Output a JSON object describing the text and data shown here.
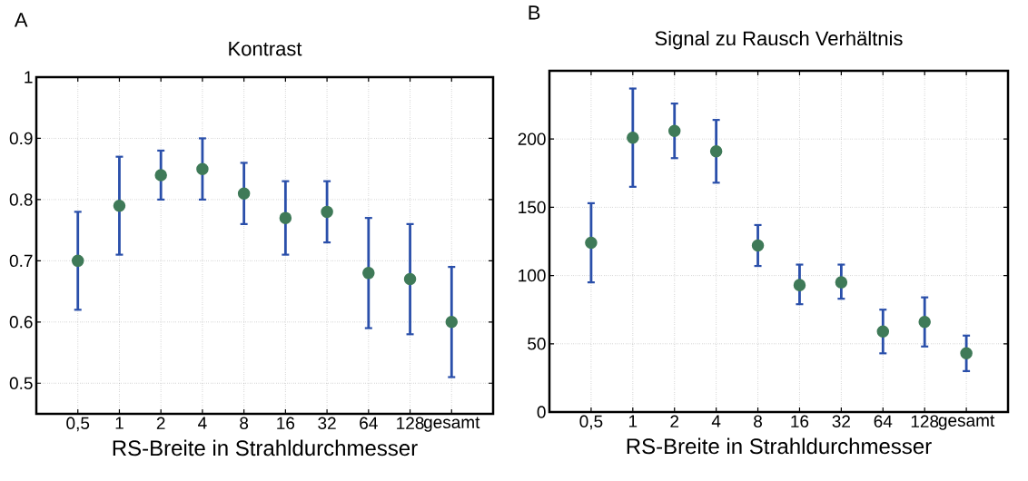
{
  "chart_data": [
    {
      "type": "scatter",
      "title": "Kontrast",
      "xlabel": "RS-Breite in Strahldurchmesser",
      "annotations": [
        "A"
      ],
      "categories": [
        "0,5",
        "1",
        "2",
        "4",
        "8",
        "16",
        "32",
        "64",
        "128",
        "gesamt"
      ],
      "series": [
        {
          "color": "#3f7a58",
          "values": [
            0.7,
            0.79,
            0.84,
            0.85,
            0.81,
            0.77,
            0.78,
            0.68,
            0.67,
            0.6
          ],
          "errors": [
            [
              0.62,
              0.78
            ],
            [
              0.71,
              0.87
            ],
            [
              0.8,
              0.88
            ],
            [
              0.8,
              0.9
            ],
            [
              0.76,
              0.86
            ],
            [
              0.71,
              0.83
            ],
            [
              0.73,
              0.83
            ],
            [
              0.59,
              0.77
            ],
            [
              0.58,
              0.76
            ],
            [
              0.51,
              0.69
            ]
          ]
        }
      ],
      "ylim": [
        0.45,
        1
      ],
      "yticks": [
        0.5,
        0.6,
        0.7,
        0.8,
        0.9,
        1
      ],
      "grid": true,
      "marker": "circle"
    },
    {
      "type": "scatter",
      "title": "Signal zu Rausch Verhältnis",
      "xlabel": "RS-Breite in Strahldurchmesser",
      "annotations": [
        "B"
      ],
      "categories": [
        "0,5",
        "1",
        "2",
        "4",
        "8",
        "16",
        "32",
        "64",
        "128",
        "gesamt"
      ],
      "series": [
        {
          "color": "#3f7a58",
          "values": [
            124,
            201,
            206,
            191,
            122,
            93,
            95,
            59,
            66,
            43
          ],
          "errors": [
            [
              95,
              153
            ],
            [
              165,
              237
            ],
            [
              186,
              226
            ],
            [
              168,
              214
            ],
            [
              107,
              137
            ],
            [
              79,
              108
            ],
            [
              83,
              108
            ],
            [
              43,
              75
            ],
            [
              48,
              84
            ],
            [
              30,
              56
            ]
          ]
        }
      ],
      "ylim": [
        0,
        250
      ],
      "yticks": [
        0,
        50,
        100,
        150,
        200
      ],
      "grid": true,
      "marker": "circle"
    }
  ]
}
